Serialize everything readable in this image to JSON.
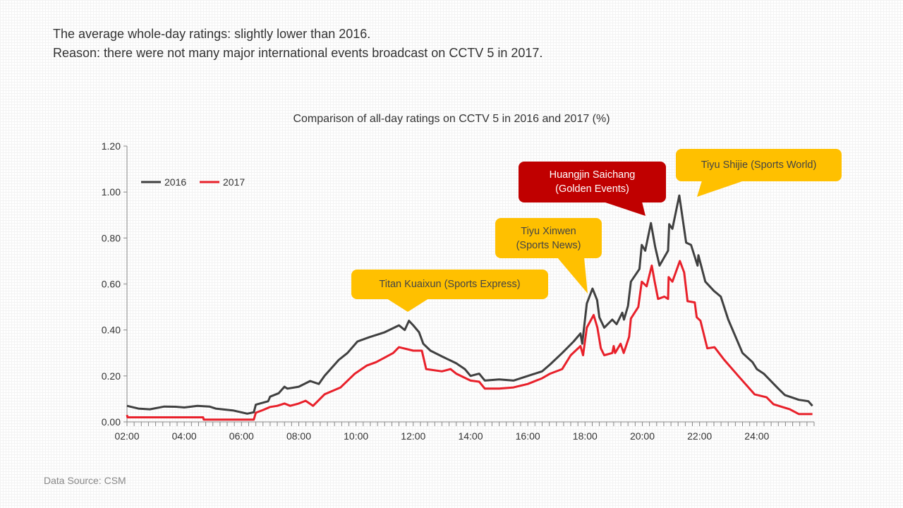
{
  "headline": {
    "line1": "The average whole-day ratings: slightly lower than 2016.",
    "line2": "Reason: there were not many major international events broadcast on CCTV 5 in 2017."
  },
  "source": "Data Source: CSM",
  "colors": {
    "s2016": "#404040",
    "s2017": "#E8202A",
    "callout_yellow": "#FFC000",
    "callout_red": "#C00000"
  },
  "chart_data": {
    "type": "line",
    "title": "Comparison of all-day ratings on CCTV 5 in 2016 and 2017 (%)",
    "xlabel": "",
    "ylabel": "",
    "xlim": [
      2,
      26
    ],
    "ylim": [
      0,
      1.2
    ],
    "x_ticks": [
      2,
      4,
      6,
      8,
      10,
      12,
      14,
      16,
      18,
      20,
      22,
      24
    ],
    "x_tick_labels": [
      "02:00",
      "04:00",
      "06:00",
      "08:00",
      "10:00",
      "12:00",
      "14:00",
      "16:00",
      "18:00",
      "20:00",
      "22:00",
      "24:00"
    ],
    "y_ticks": [
      0,
      0.2,
      0.4,
      0.6,
      0.8,
      1.0,
      1.2
    ],
    "y_tick_labels": [
      "0.00",
      "0.20",
      "0.40",
      "0.60",
      "0.80",
      "1.00",
      "1.20"
    ],
    "legend": {
      "position": "top-left",
      "entries": [
        "2016",
        "2017"
      ]
    },
    "series": [
      {
        "name": "2016",
        "points": [
          [
            2.0,
            0.07
          ],
          [
            2.4,
            0.058
          ],
          [
            2.8,
            0.055
          ],
          [
            3.3,
            0.067
          ],
          [
            3.7,
            0.066
          ],
          [
            4.0,
            0.063
          ],
          [
            4.46,
            0.07
          ],
          [
            4.88,
            0.067
          ],
          [
            5.1,
            0.058
          ],
          [
            5.7,
            0.05
          ],
          [
            6.2,
            0.036
          ],
          [
            6.43,
            0.042
          ],
          [
            6.5,
            0.075
          ],
          [
            6.93,
            0.09
          ],
          [
            7.0,
            0.11
          ],
          [
            7.3,
            0.125
          ],
          [
            7.5,
            0.153
          ],
          [
            7.6,
            0.145
          ],
          [
            8.0,
            0.153
          ],
          [
            8.4,
            0.178
          ],
          [
            8.7,
            0.165
          ],
          [
            8.9,
            0.2
          ],
          [
            9.4,
            0.27
          ],
          [
            9.7,
            0.3
          ],
          [
            10.05,
            0.35
          ],
          [
            10.5,
            0.37
          ],
          [
            11.0,
            0.39
          ],
          [
            11.5,
            0.42
          ],
          [
            11.7,
            0.4
          ],
          [
            11.85,
            0.44
          ],
          [
            12.0,
            0.42
          ],
          [
            12.2,
            0.39
          ],
          [
            12.35,
            0.34
          ],
          [
            12.6,
            0.31
          ],
          [
            13.0,
            0.285
          ],
          [
            13.5,
            0.255
          ],
          [
            13.8,
            0.23
          ],
          [
            14.0,
            0.2
          ],
          [
            14.3,
            0.21
          ],
          [
            14.5,
            0.18
          ],
          [
            15.0,
            0.185
          ],
          [
            15.5,
            0.18
          ],
          [
            16.0,
            0.2
          ],
          [
            16.5,
            0.22
          ],
          [
            16.78,
            0.25
          ],
          [
            17.2,
            0.3
          ],
          [
            17.6,
            0.35
          ],
          [
            17.84,
            0.385
          ],
          [
            17.9,
            0.34
          ],
          [
            18.06,
            0.515
          ],
          [
            18.26,
            0.58
          ],
          [
            18.42,
            0.53
          ],
          [
            18.5,
            0.455
          ],
          [
            18.67,
            0.41
          ],
          [
            18.95,
            0.445
          ],
          [
            19.1,
            0.425
          ],
          [
            19.3,
            0.475
          ],
          [
            19.36,
            0.445
          ],
          [
            19.5,
            0.505
          ],
          [
            19.6,
            0.61
          ],
          [
            19.9,
            0.665
          ],
          [
            19.98,
            0.77
          ],
          [
            20.1,
            0.745
          ],
          [
            20.3,
            0.865
          ],
          [
            20.45,
            0.76
          ],
          [
            20.6,
            0.68
          ],
          [
            20.9,
            0.745
          ],
          [
            20.94,
            0.86
          ],
          [
            21.05,
            0.84
          ],
          [
            21.29,
            0.985
          ],
          [
            21.53,
            0.78
          ],
          [
            21.7,
            0.77
          ],
          [
            21.93,
            0.68
          ],
          [
            21.96,
            0.725
          ],
          [
            22.2,
            0.61
          ],
          [
            22.5,
            0.57
          ],
          [
            22.74,
            0.545
          ],
          [
            23.0,
            0.445
          ],
          [
            23.5,
            0.3
          ],
          [
            23.85,
            0.26
          ],
          [
            24.0,
            0.23
          ],
          [
            24.24,
            0.21
          ],
          [
            24.73,
            0.147
          ],
          [
            24.98,
            0.117
          ],
          [
            25.47,
            0.096
          ],
          [
            25.8,
            0.09
          ],
          [
            25.94,
            0.07
          ]
        ]
      },
      {
        "name": "2017",
        "points": [
          [
            2.0,
            0.03
          ],
          [
            2.02,
            0.02
          ],
          [
            4.66,
            0.02
          ],
          [
            4.68,
            0.01
          ],
          [
            6.43,
            0.01
          ],
          [
            6.5,
            0.04
          ],
          [
            6.75,
            0.052
          ],
          [
            7.0,
            0.065
          ],
          [
            7.25,
            0.07
          ],
          [
            7.5,
            0.08
          ],
          [
            7.7,
            0.07
          ],
          [
            8.0,
            0.08
          ],
          [
            8.24,
            0.092
          ],
          [
            8.5,
            0.07
          ],
          [
            8.9,
            0.12
          ],
          [
            9.46,
            0.15
          ],
          [
            9.96,
            0.21
          ],
          [
            10.37,
            0.245
          ],
          [
            10.7,
            0.26
          ],
          [
            11.0,
            0.28
          ],
          [
            11.3,
            0.3
          ],
          [
            11.5,
            0.325
          ],
          [
            12.0,
            0.31
          ],
          [
            12.3,
            0.31
          ],
          [
            12.45,
            0.23
          ],
          [
            13.0,
            0.22
          ],
          [
            13.3,
            0.23
          ],
          [
            13.5,
            0.21
          ],
          [
            14.0,
            0.18
          ],
          [
            14.3,
            0.175
          ],
          [
            14.5,
            0.145
          ],
          [
            15.0,
            0.145
          ],
          [
            15.5,
            0.15
          ],
          [
            16.0,
            0.165
          ],
          [
            16.5,
            0.19
          ],
          [
            16.78,
            0.21
          ],
          [
            17.2,
            0.23
          ],
          [
            17.5,
            0.29
          ],
          [
            17.84,
            0.33
          ],
          [
            17.93,
            0.29
          ],
          [
            18.06,
            0.41
          ],
          [
            18.3,
            0.465
          ],
          [
            18.43,
            0.41
          ],
          [
            18.55,
            0.32
          ],
          [
            18.67,
            0.29
          ],
          [
            18.95,
            0.3
          ],
          [
            19.0,
            0.33
          ],
          [
            19.05,
            0.3
          ],
          [
            19.24,
            0.34
          ],
          [
            19.35,
            0.3
          ],
          [
            19.54,
            0.37
          ],
          [
            19.6,
            0.45
          ],
          [
            19.86,
            0.5
          ],
          [
            19.98,
            0.61
          ],
          [
            20.15,
            0.59
          ],
          [
            20.33,
            0.68
          ],
          [
            20.43,
            0.61
          ],
          [
            20.55,
            0.535
          ],
          [
            20.77,
            0.545
          ],
          [
            20.9,
            0.535
          ],
          [
            20.92,
            0.63
          ],
          [
            21.05,
            0.61
          ],
          [
            21.31,
            0.7
          ],
          [
            21.46,
            0.65
          ],
          [
            21.58,
            0.525
          ],
          [
            21.83,
            0.52
          ],
          [
            21.9,
            0.455
          ],
          [
            22.03,
            0.44
          ],
          [
            22.27,
            0.32
          ],
          [
            22.52,
            0.325
          ],
          [
            22.86,
            0.27
          ],
          [
            23.35,
            0.2
          ],
          [
            23.92,
            0.12
          ],
          [
            24.34,
            0.107
          ],
          [
            24.58,
            0.077
          ],
          [
            25.15,
            0.055
          ],
          [
            25.47,
            0.034
          ],
          [
            25.94,
            0.034
          ]
        ]
      }
    ],
    "annotations": [
      {
        "id": "titan",
        "text": "Titan Kuaixun (Sports Express)",
        "time": 11.9
      },
      {
        "id": "xinwen",
        "line1": "Tiyu Xinwen",
        "line2": "(Sports News)",
        "time": 18.3
      },
      {
        "id": "huangjin",
        "line1": "Huangjin Saichang",
        "line2": "(Golden Events)",
        "time": 20.3
      },
      {
        "id": "shijie",
        "text": "Tiyu Shijie (Sports World)",
        "time": 21.3
      }
    ]
  }
}
